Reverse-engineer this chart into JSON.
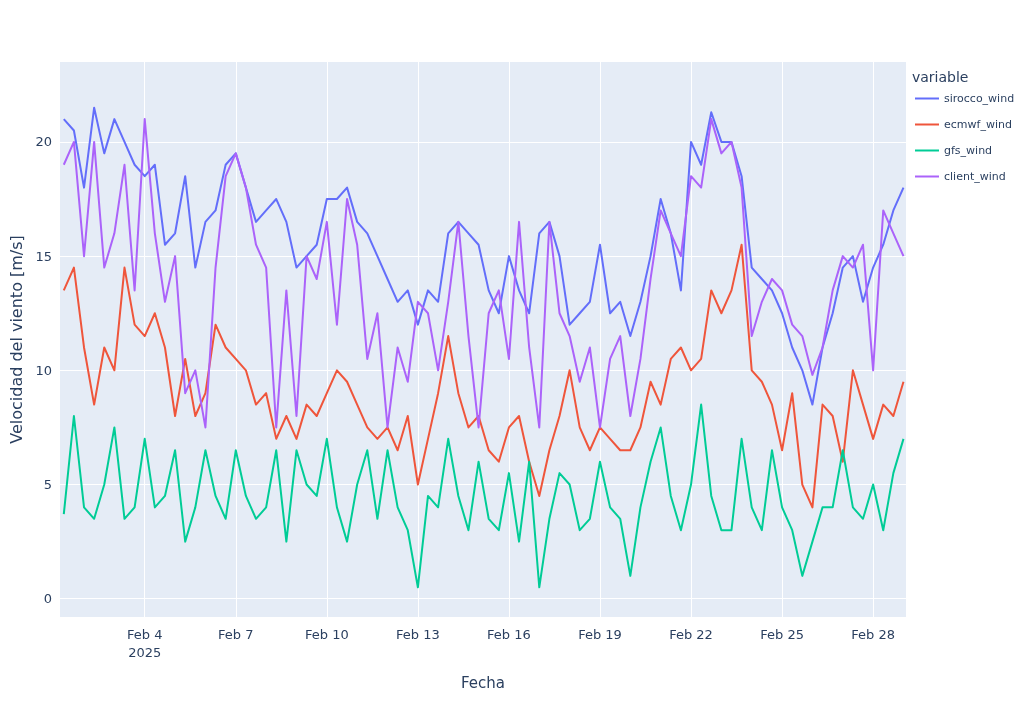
{
  "chart_data": {
    "type": "line",
    "xlabel": "Fecha",
    "ylabel": "Velocidad del viento [m/s]",
    "legend_title": "variable",
    "legend": "top right",
    "grid": true,
    "marker": "none",
    "line_style": "solid",
    "xlim": [
      "2025-02-01T05:00",
      "2025-03-01T02:00"
    ],
    "ylim": [
      -0.8,
      23.5
    ],
    "xticks": [
      {
        "value": "2025-02-04",
        "label": "Feb 4\n2025"
      },
      {
        "value": "2025-02-07",
        "label": "Feb 7"
      },
      {
        "value": "2025-02-10",
        "label": "Feb 10"
      },
      {
        "value": "2025-02-13",
        "label": "Feb 13"
      },
      {
        "value": "2025-02-16",
        "label": "Feb 16"
      },
      {
        "value": "2025-02-19",
        "label": "Feb 19"
      },
      {
        "value": "2025-02-22",
        "label": "Feb 22"
      },
      {
        "value": "2025-02-25",
        "label": "Feb 25"
      },
      {
        "value": "2025-02-28",
        "label": "Feb 28"
      }
    ],
    "yticks": [
      0,
      5,
      10,
      15,
      20
    ],
    "x": [
      "2025-02-01T08:00",
      "2025-02-01T16:00",
      "2025-02-02T00:00",
      "2025-02-02T08:00",
      "2025-02-02T16:00",
      "2025-02-03T00:00",
      "2025-02-03T08:00",
      "2025-02-03T16:00",
      "2025-02-04T00:00",
      "2025-02-04T08:00",
      "2025-02-04T16:00",
      "2025-02-05T00:00",
      "2025-02-05T08:00",
      "2025-02-05T16:00",
      "2025-02-06T00:00",
      "2025-02-06T08:00",
      "2025-02-06T16:00",
      "2025-02-07T00:00",
      "2025-02-07T08:00",
      "2025-02-07T16:00",
      "2025-02-08T00:00",
      "2025-02-08T08:00",
      "2025-02-08T16:00",
      "2025-02-09T00:00",
      "2025-02-09T08:00",
      "2025-02-09T16:00",
      "2025-02-10T00:00",
      "2025-02-10T08:00",
      "2025-02-10T16:00",
      "2025-02-11T00:00",
      "2025-02-11T08:00",
      "2025-02-11T16:00",
      "2025-02-12T00:00",
      "2025-02-12T08:00",
      "2025-02-12T16:00",
      "2025-02-13T00:00",
      "2025-02-13T08:00",
      "2025-02-13T16:00",
      "2025-02-14T00:00",
      "2025-02-14T08:00",
      "2025-02-14T16:00",
      "2025-02-15T00:00",
      "2025-02-15T08:00",
      "2025-02-15T16:00",
      "2025-02-16T00:00",
      "2025-02-16T08:00",
      "2025-02-16T16:00",
      "2025-02-17T00:00",
      "2025-02-17T08:00",
      "2025-02-17T16:00",
      "2025-02-18T00:00",
      "2025-02-18T08:00",
      "2025-02-18T16:00",
      "2025-02-19T00:00",
      "2025-02-19T08:00",
      "2025-02-19T16:00",
      "2025-02-20T00:00",
      "2025-02-20T08:00",
      "2025-02-20T16:00",
      "2025-02-21T00:00",
      "2025-02-21T08:00",
      "2025-02-21T16:00",
      "2025-02-22T00:00",
      "2025-02-22T08:00",
      "2025-02-22T16:00",
      "2025-02-23T00:00",
      "2025-02-23T08:00",
      "2025-02-23T16:00",
      "2025-02-24T00:00",
      "2025-02-24T08:00",
      "2025-02-24T16:00",
      "2025-02-25T00:00",
      "2025-02-25T08:00",
      "2025-02-25T16:00",
      "2025-02-26T00:00",
      "2025-02-26T08:00",
      "2025-02-26T16:00",
      "2025-02-27T00:00",
      "2025-02-27T08:00",
      "2025-02-27T16:00",
      "2025-02-28T00:00",
      "2025-02-28T08:00",
      "2025-02-28T16:00",
      "2025-03-01T00:00"
    ],
    "series": [
      {
        "name": "sirocco_wind",
        "color": "#636efa",
        "values": [
          21,
          20.5,
          18,
          21.5,
          19.5,
          21,
          20,
          19,
          18.5,
          19,
          15.5,
          16,
          18.5,
          14.5,
          16.5,
          17,
          19,
          19.5,
          18,
          16.5,
          17,
          17.5,
          16.5,
          14.5,
          15,
          15.5,
          17.5,
          17.5,
          18,
          16.5,
          16,
          15,
          14,
          13,
          13.5,
          12,
          13.5,
          13,
          16,
          16.5,
          16,
          15.5,
          13.5,
          12.5,
          15,
          13.5,
          12.5,
          16,
          16.5,
          15,
          12,
          12.5,
          13,
          15.5,
          12.5,
          13,
          11.5,
          13,
          15,
          17.5,
          16,
          13.5,
          20,
          19,
          21.3,
          20,
          20,
          18.5,
          14.5,
          14,
          13.5,
          12.5,
          11,
          10,
          8.5,
          11,
          12.5,
          14.5,
          15,
          13,
          14.5,
          15.5,
          17,
          18
        ]
      },
      {
        "name": "ecmwf_wind",
        "color": "#ef553b",
        "values": [
          13.5,
          14.5,
          11,
          8.5,
          11,
          10,
          14.5,
          12,
          11.5,
          12.5,
          11,
          8,
          10.5,
          8,
          9,
          12,
          11,
          10.5,
          10,
          8.5,
          9,
          7,
          8,
          7,
          8.5,
          8,
          9,
          10,
          9.5,
          8.5,
          7.5,
          7,
          7.5,
          6.5,
          8,
          5,
          7,
          9,
          11.5,
          9,
          7.5,
          8,
          6.5,
          6,
          7.5,
          8,
          6,
          4.5,
          6.5,
          8,
          10,
          7.5,
          6.5,
          7.5,
          7,
          6.5,
          6.5,
          7.5,
          9.5,
          8.5,
          10.5,
          11,
          10,
          10.5,
          13.5,
          12.5,
          13.5,
          15.5,
          10,
          9.5,
          8.5,
          6.5,
          9,
          5,
          4,
          8.5,
          8,
          6,
          10,
          8.5,
          7,
          8.5,
          8,
          9.5
        ]
      },
      {
        "name": "gfs_wind",
        "color": "#00cc96",
        "values": [
          3.7,
          8,
          4,
          3.5,
          5,
          7.5,
          3.5,
          4,
          7,
          4,
          4.5,
          6.5,
          2.5,
          4,
          6.5,
          4.5,
          3.5,
          6.5,
          4.5,
          3.5,
          4,
          6.5,
          2.5,
          6.5,
          5,
          4.5,
          7,
          4,
          2.5,
          5,
          6.5,
          3.5,
          6.5,
          4,
          3,
          0.5,
          4.5,
          4,
          7,
          4.5,
          3,
          6,
          3.5,
          3,
          5.5,
          2.5,
          6,
          0.5,
          3.5,
          5.5,
          5,
          3,
          3.5,
          6,
          4,
          3.5,
          1,
          4,
          6,
          7.5,
          4.5,
          3,
          5,
          8.5,
          4.5,
          3,
          3,
          7,
          4,
          3,
          6.5,
          4,
          3,
          1,
          2.5,
          4,
          4,
          6.5,
          4,
          3.5,
          5,
          3,
          5.5,
          7
        ]
      },
      {
        "name": "client_wind",
        "color": "#ab63fa",
        "values": [
          19,
          20,
          15,
          20,
          14.5,
          16,
          19,
          13.5,
          21,
          16,
          13,
          15,
          9,
          10,
          7.5,
          14.5,
          18.5,
          19.5,
          18,
          15.5,
          14.5,
          7.5,
          13.5,
          8,
          15,
          14,
          16.5,
          12,
          17.5,
          15.5,
          10.5,
          12.5,
          7.5,
          11,
          9.5,
          13,
          12.5,
          10,
          13,
          16.5,
          11.5,
          7.5,
          12.5,
          13.5,
          10.5,
          16.5,
          11,
          7.5,
          16.5,
          12.5,
          11.5,
          9.5,
          11,
          7.5,
          10.5,
          11.5,
          8,
          10.5,
          14,
          17,
          16,
          15,
          18.5,
          18,
          21,
          19.5,
          20,
          18,
          11.5,
          13,
          14,
          13.5,
          12,
          11.5,
          9.8,
          11,
          13.5,
          15,
          14.5,
          15.5,
          10,
          17,
          16,
          15
        ]
      }
    ]
  }
}
